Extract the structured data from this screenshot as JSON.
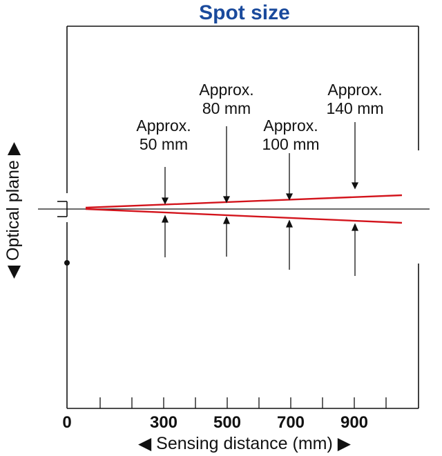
{
  "title": "Spot size",
  "y_axis_label": "◀ Optical plane ▶",
  "x_axis_label": "◀ Sensing distance (mm) ▶",
  "x_tick_labels": [
    "0",
    "300",
    "500",
    "700",
    "900"
  ],
  "spot_annotations": [
    {
      "line1": "Approx.",
      "line2": "50 mm"
    },
    {
      "line1": "Approx.",
      "line2": "80 mm"
    },
    {
      "line1": "Approx.",
      "line2": "100 mm"
    },
    {
      "line1": "Approx.",
      "line2": "140 mm"
    }
  ],
  "colors": {
    "beam": "#d3141c",
    "title": "#1a4a9c",
    "lines": "#111111"
  }
}
